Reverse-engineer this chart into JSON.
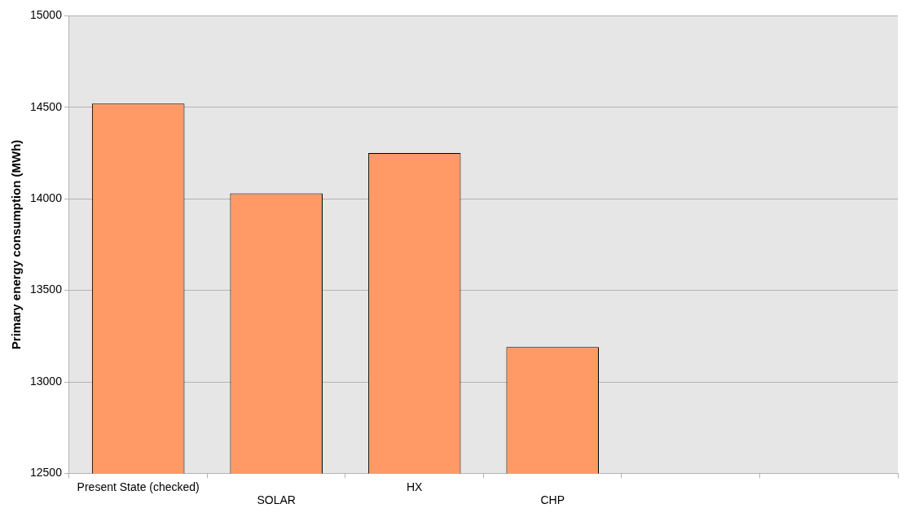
{
  "chart_data": {
    "type": "bar",
    "ylabel": "Primary energy consumption (MWh)",
    "categories": [
      "Present State (checked)",
      "SOLAR",
      "HX",
      "CHP",
      null,
      null
    ],
    "values": [
      14520,
      14030,
      14250,
      13190,
      null,
      null
    ],
    "color": "#ff9966",
    "ylim": [
      12500,
      15000
    ],
    "yticks": [
      12500,
      13000,
      13500,
      14000,
      14500,
      15000
    ],
    "grid": "y",
    "legend": false
  }
}
